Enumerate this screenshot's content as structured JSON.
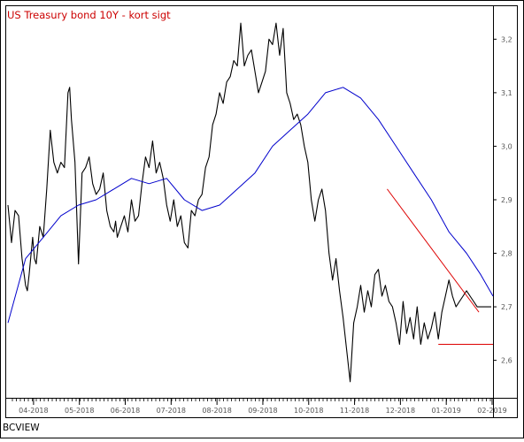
{
  "chart_data": {
    "type": "line",
    "title": "US Treasury bond 10Y - kort sigt",
    "source_label": "BCVIEW",
    "x_tick_labels": [
      "04-2018",
      "05-2018",
      "06-2018",
      "07-2018",
      "08-2018",
      "09-2018",
      "10-2018",
      "11-2018",
      "12-2018",
      "01-2019",
      "02-2019"
    ],
    "y_tick_labels": [
      "2,6",
      "2,7",
      "2,8",
      "2,9",
      "3,0",
      "3,1",
      "3,2"
    ],
    "y_ticks": [
      2.6,
      2.7,
      2.8,
      2.9,
      3.0,
      3.1,
      3.2
    ],
    "ylim": [
      2.53,
      3.26
    ],
    "xlim": [
      0,
      275
    ],
    "x_tick_positions": [
      14.5,
      40.5,
      66.5,
      92.5,
      118.5,
      144.5,
      170.5,
      196.5,
      222.5,
      248.5,
      274.5
    ],
    "grid": false,
    "legend": "none",
    "colors": {
      "price": "#000000",
      "moving_average": "#0000cc",
      "trendline": "#dd0000",
      "title": "#cc0000"
    },
    "series": [
      {
        "kind": "price",
        "x": [
          0,
          2,
          4,
          6,
          8,
          10,
          11,
          12,
          14,
          15,
          16,
          18,
          20,
          22,
          24,
          26,
          28,
          30,
          32,
          34,
          35,
          36,
          38,
          40,
          42,
          44,
          46,
          48,
          50,
          52,
          54,
          56,
          58,
          60,
          61,
          62,
          64,
          66,
          68,
          70,
          72,
          74,
          76,
          78,
          80,
          82,
          84,
          86,
          88,
          90,
          92,
          94,
          96,
          98,
          100,
          102,
          104,
          106,
          108,
          110,
          112,
          114,
          116,
          118,
          120,
          122,
          124,
          126,
          128,
          130,
          132,
          134,
          136,
          138,
          140,
          142,
          144,
          146,
          148,
          150,
          152,
          154,
          156,
          158,
          160,
          162,
          164,
          166,
          168,
          170,
          172,
          174,
          176,
          178,
          180,
          182,
          184,
          186,
          188,
          190,
          192,
          194,
          196,
          198,
          200,
          202,
          204,
          206,
          208,
          210,
          212,
          214,
          216,
          218,
          220,
          222,
          224,
          226,
          228,
          230,
          232,
          234,
          236,
          238,
          240,
          242,
          244,
          246,
          248,
          250,
          252,
          254,
          256,
          258,
          260,
          262,
          264,
          266,
          268,
          270,
          272,
          274
        ],
        "y": [
          2.89,
          2.82,
          2.88,
          2.87,
          2.79,
          2.74,
          2.73,
          2.76,
          2.83,
          2.79,
          2.78,
          2.85,
          2.83,
          2.92,
          3.03,
          2.97,
          2.95,
          2.97,
          2.96,
          3.1,
          3.11,
          3.05,
          2.97,
          2.78,
          2.95,
          2.96,
          2.98,
          2.93,
          2.91,
          2.92,
          2.95,
          2.88,
          2.85,
          2.84,
          2.86,
          2.83,
          2.85,
          2.87,
          2.84,
          2.9,
          2.86,
          2.87,
          2.93,
          2.98,
          2.96,
          3.01,
          2.95,
          2.97,
          2.94,
          2.89,
          2.86,
          2.9,
          2.85,
          2.87,
          2.82,
          2.81,
          2.88,
          2.87,
          2.9,
          2.91,
          2.96,
          2.98,
          3.04,
          3.06,
          3.1,
          3.08,
          3.12,
          3.13,
          3.16,
          3.15,
          3.23,
          3.15,
          3.17,
          3.18,
          3.14,
          3.1,
          3.12,
          3.14,
          3.2,
          3.19,
          3.23,
          3.17,
          3.22,
          3.1,
          3.08,
          3.05,
          3.06,
          3.04,
          3.0,
          2.97,
          2.9,
          2.86,
          2.9,
          2.92,
          2.88,
          2.8,
          2.75,
          2.79,
          2.73,
          2.68,
          2.62,
          2.56,
          2.67,
          2.7,
          2.74,
          2.69,
          2.73,
          2.7,
          2.76,
          2.77,
          2.72,
          2.74,
          2.71,
          2.7,
          2.67,
          2.63,
          2.71,
          2.65,
          2.68,
          2.64,
          2.7,
          2.63,
          2.67,
          2.64,
          2.66,
          2.69,
          2.64,
          2.69,
          2.72,
          2.75,
          2.72,
          2.7,
          2.71,
          2.72,
          2.73,
          2.72,
          2.71,
          2.7,
          2.7,
          2.7,
          2.7,
          2.7
        ]
      },
      {
        "kind": "moving_average",
        "x": [
          0,
          10,
          20,
          30,
          40,
          50,
          60,
          70,
          80,
          90,
          100,
          110,
          120,
          130,
          140,
          150,
          160,
          170,
          180,
          190,
          200,
          210,
          220,
          230,
          240,
          250,
          260,
          268,
          275
        ],
        "y": [
          2.67,
          2.79,
          2.83,
          2.87,
          2.89,
          2.9,
          2.92,
          2.94,
          2.93,
          2.94,
          2.9,
          2.88,
          2.89,
          2.92,
          2.95,
          3.0,
          3.03,
          3.06,
          3.1,
          3.11,
          3.09,
          3.05,
          3.0,
          2.95,
          2.9,
          2.84,
          2.8,
          2.76,
          2.72
        ]
      }
    ],
    "annotations": [
      {
        "kind": "trendline",
        "x": [
          215,
          267
        ],
        "y": [
          2.92,
          2.69
        ]
      },
      {
        "kind": "support",
        "x": [
          244,
          275
        ],
        "y": [
          2.63,
          2.63
        ]
      }
    ]
  }
}
